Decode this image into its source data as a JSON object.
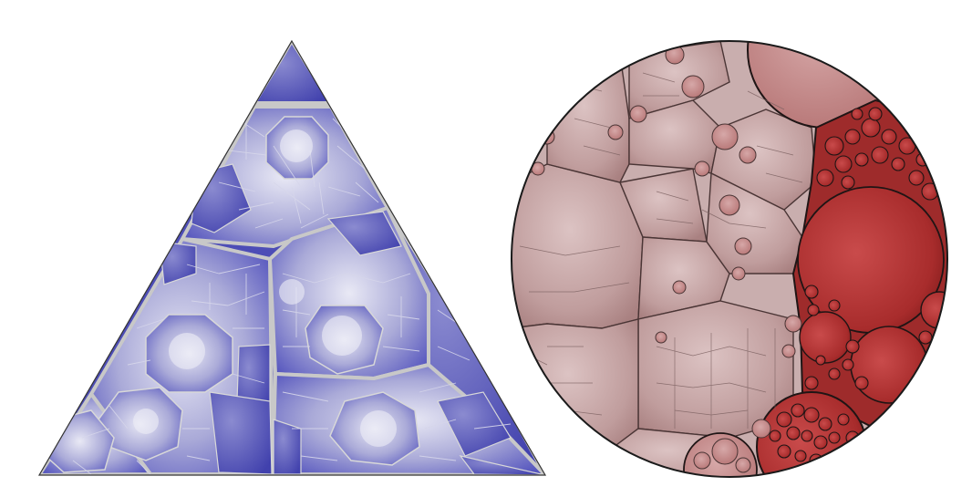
{
  "figures": [
    {
      "id": "triangle-treemap",
      "shape": "triangle",
      "fill_light": "#e9e9f5",
      "fill_dark": "#4b4bb8",
      "cell_stroke": "#dcdcdc",
      "group_stroke": "#c4c4c4",
      "outline": "#333333"
    },
    {
      "id": "circle-treemap",
      "shape": "circle",
      "fill_light": "#dcc3c3",
      "fill_dark": "#a52f2f",
      "cell_stroke": "#4a3535",
      "group_stroke": "#1f1515",
      "outline": "#1a1a1a"
    }
  ]
}
